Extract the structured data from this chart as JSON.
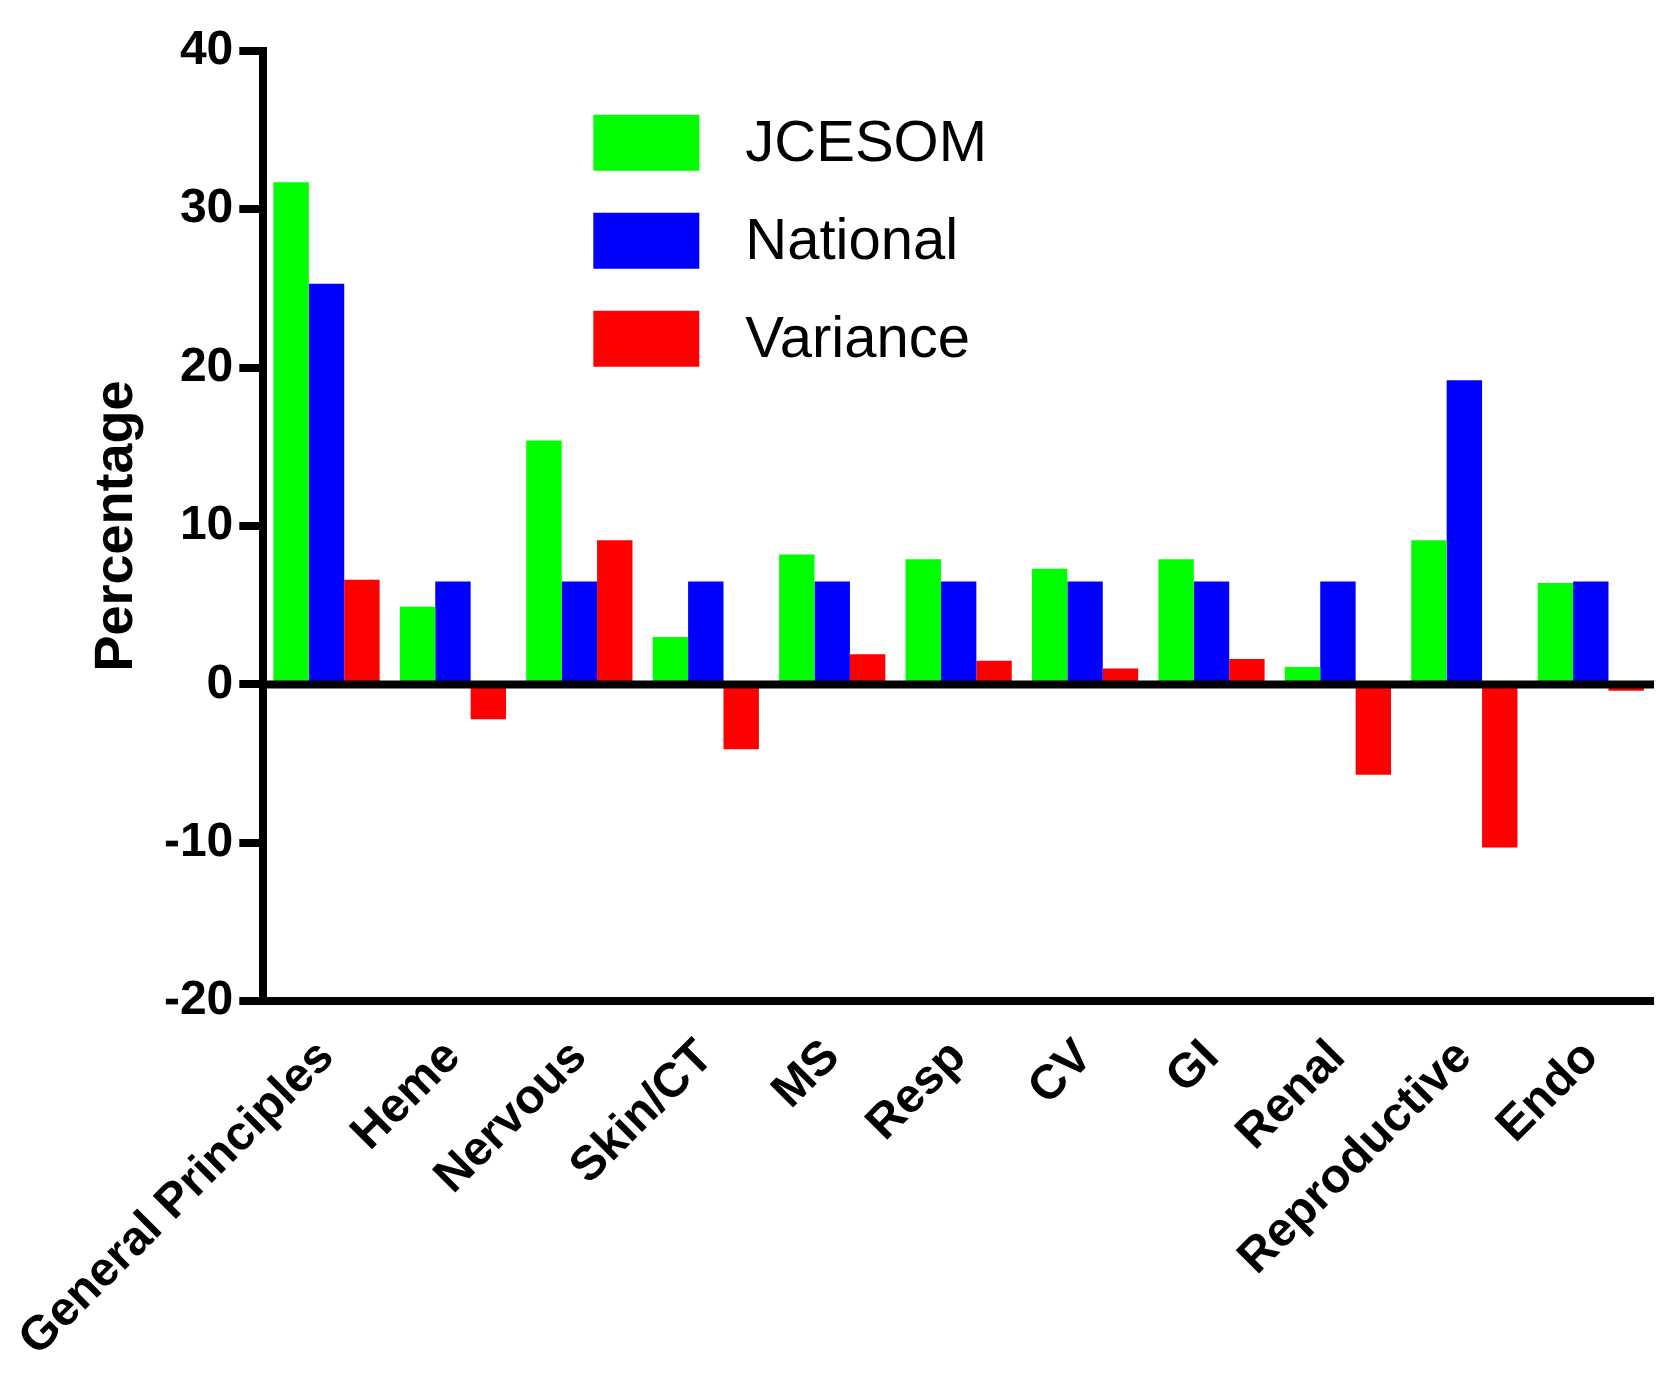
{
  "chart_data": {
    "type": "bar",
    "ylabel": "Percentage",
    "categories": [
      "General Principles",
      "Heme",
      "Nervous",
      "Skin/CT",
      "MS",
      "Resp",
      "CV",
      "GI",
      "Renal",
      "Reproductive",
      "Endo"
    ],
    "series": [
      {
        "name": "JCESOM",
        "color": "#00ff00",
        "values": [
          31.7,
          4.9,
          15.4,
          3.0,
          8.2,
          7.9,
          7.3,
          7.9,
          1.1,
          9.1,
          6.4
        ]
      },
      {
        "name": "National",
        "color": "#0000ff",
        "values": [
          25.3,
          6.5,
          6.5,
          6.5,
          6.5,
          6.5,
          6.5,
          6.5,
          6.5,
          19.2,
          6.5
        ]
      },
      {
        "name": "Variance",
        "color": "#ff0000",
        "values": [
          6.6,
          -2.2,
          9.1,
          -4.1,
          1.9,
          1.5,
          1.0,
          1.6,
          -5.7,
          -10.3,
          -0.4
        ]
      }
    ],
    "ylim": [
      -20,
      40
    ],
    "yticks": [
      -20,
      -10,
      0,
      10,
      20,
      30,
      40
    ],
    "ref_lines": [
      {
        "axis": "y",
        "value": 0,
        "color": "#000000"
      }
    ],
    "grid": false,
    "legend": "top"
  }
}
